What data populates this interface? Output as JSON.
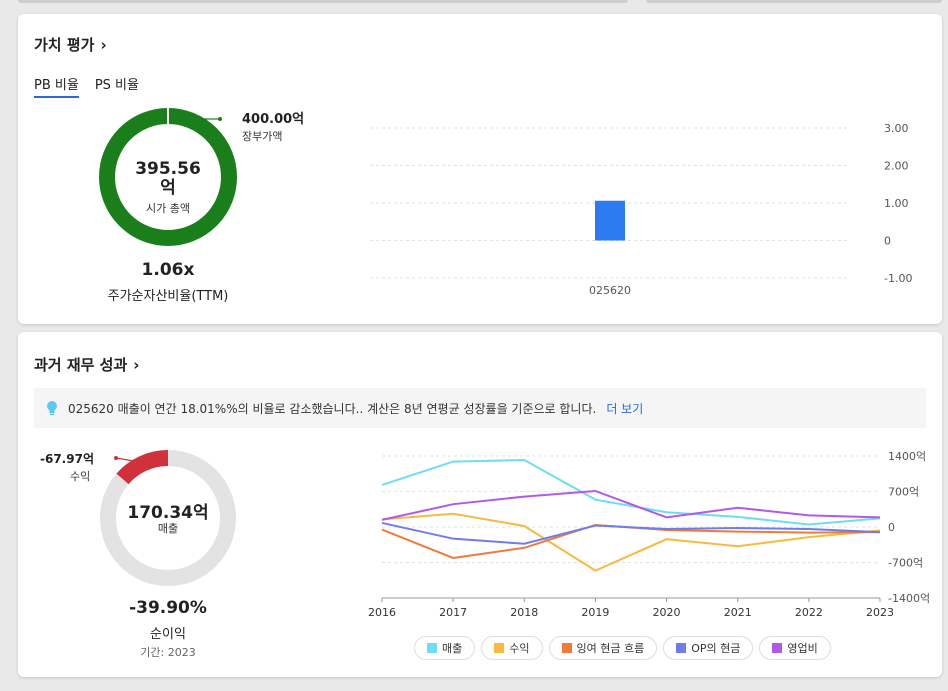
{
  "valuation": {
    "title": "가치 평가",
    "tabs": [
      "PB 비율",
      "PS 비율"
    ],
    "donut": {
      "center_value": "395.56",
      "center_unit": "억",
      "center_label": "시가 총액",
      "outer_value": "400.00억",
      "outer_label": "장부가액",
      "fraction": 0.989,
      "color": "#1a7f1a"
    },
    "ratio_value": "1.06x",
    "ratio_label": "주가순자산비율(TTM)"
  },
  "pb_chart": {
    "type": "bar",
    "categories": [
      "025620"
    ],
    "values": [
      1.06
    ],
    "ylim": [
      -1.0,
      3.0
    ],
    "yticks": [
      "3.00",
      "2.00",
      "1.00",
      "0",
      "-1.00"
    ],
    "bar_color": "#2d7bf0"
  },
  "financials": {
    "title": "과거 재무 성과",
    "banner_text": "025620 매출이 연간 18.01%%의 비율로 감소했습니다.. 계산은 8년 연평균 성장률을 기준으로 합니다.",
    "banner_link": "더 보기",
    "donut": {
      "center_value": "170.34억",
      "center_label": "매출",
      "outer_value": "-67.97억",
      "outer_label": "수익",
      "fraction": 0.137,
      "color": "#d0313a",
      "track_color": "#e3e3e3"
    },
    "margin_value": "-39.90%",
    "margin_label": "순이익",
    "period": "기간: 2023"
  },
  "chart_data": {
    "type": "line",
    "x": [
      "2016",
      "2017",
      "2018",
      "2019",
      "2020",
      "2021",
      "2022",
      "2023"
    ],
    "ylim": [
      -1400,
      1400
    ],
    "yticks": [
      "1400억",
      "700억",
      "0",
      "-700억",
      "-1400억"
    ],
    "series": [
      {
        "name": "매출",
        "color": "#6fdcf2",
        "values": [
          830,
          1290,
          1320,
          540,
          290,
          200,
          50,
          170
        ]
      },
      {
        "name": "수익",
        "color": "#f7b940",
        "values": [
          150,
          260,
          20,
          -860,
          -240,
          -380,
          -200,
          -70
        ]
      },
      {
        "name": "잉여 현금 흐름",
        "color": "#f07a3a",
        "values": [
          -50,
          -610,
          -410,
          40,
          -60,
          -90,
          -110,
          -100
        ]
      },
      {
        "name": "OP의 현금",
        "color": "#6f7de8",
        "values": [
          80,
          -230,
          -330,
          30,
          -40,
          -20,
          -40,
          -100
        ]
      },
      {
        "name": "영업비",
        "color": "#b25ae8",
        "values": [
          140,
          450,
          600,
          710,
          190,
          380,
          230,
          190
        ]
      }
    ]
  }
}
